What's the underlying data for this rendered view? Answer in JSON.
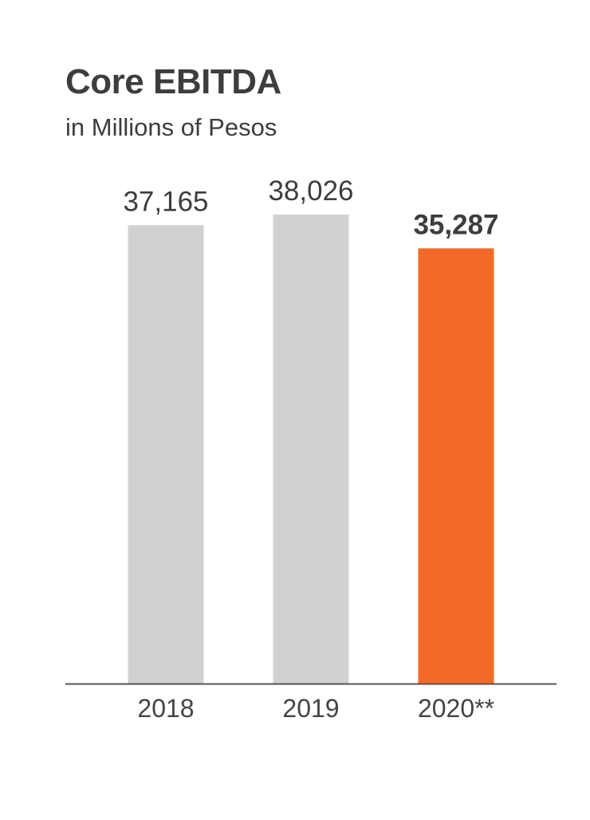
{
  "chart_data": {
    "type": "bar",
    "title": "Core EBITDA",
    "subtitle": "in Millions of Pesos",
    "categories": [
      "2018",
      "2019",
      "2020**"
    ],
    "values": [
      37165,
      38026,
      35287
    ],
    "value_labels": [
      "37,165",
      "38,026",
      "35,287"
    ],
    "highlight_index": 2,
    "colors": {
      "default_bar": "#d0d1d3",
      "highlight_bar": "#f26a26",
      "text": "#3d3d3d",
      "axis": "#555555"
    },
    "grid": false,
    "legend": "none"
  }
}
